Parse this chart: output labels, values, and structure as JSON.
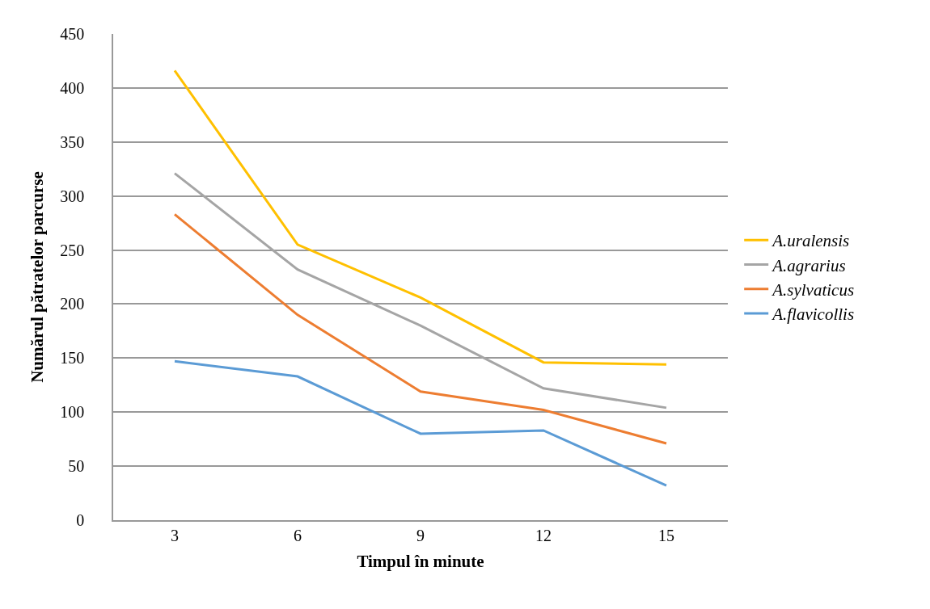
{
  "chart_data": {
    "type": "line",
    "xlabel": "Timpul în minute",
    "ylabel": "Numărul pătratelor parcurse",
    "categories": [
      "3",
      "6",
      "9",
      "12",
      "15"
    ],
    "series": [
      {
        "name": "A.uralensis",
        "color": "#ffc000",
        "values": [
          416,
          255,
          206,
          146,
          144
        ]
      },
      {
        "name": "A.agrarius",
        "color": "#a5a5a5",
        "values": [
          321,
          232,
          180,
          122,
          104
        ]
      },
      {
        "name": "A.sylvaticus",
        "color": "#ed7d31",
        "values": [
          283,
          190,
          119,
          102,
          71
        ]
      },
      {
        "name": "A.flavicollis",
        "color": "#5b9bd5",
        "values": [
          147,
          133,
          80,
          83,
          32
        ]
      }
    ],
    "ylim": [
      0,
      450
    ],
    "yticks": [
      0,
      50,
      100,
      150,
      200,
      250,
      300,
      350,
      400,
      450
    ],
    "grid": "y",
    "legend": "right",
    "marker": "none",
    "line_style": "solid"
  }
}
